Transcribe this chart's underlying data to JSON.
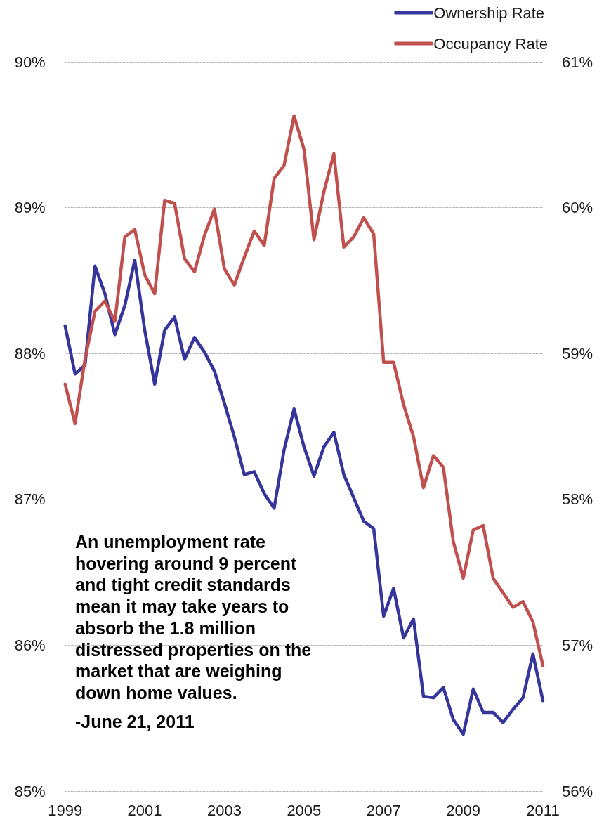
{
  "chart_data": {
    "type": "line",
    "x": [
      1999,
      1999.25,
      1999.5,
      1999.75,
      2000,
      2000.25,
      2000.5,
      2000.75,
      2001,
      2001.25,
      2001.5,
      2001.75,
      2002,
      2002.25,
      2002.5,
      2002.75,
      2003,
      2003.25,
      2003.5,
      2003.75,
      2004,
      2004.25,
      2004.5,
      2004.75,
      2005,
      2005.25,
      2005.5,
      2005.75,
      2006,
      2006.25,
      2006.5,
      2006.75,
      2007,
      2007.25,
      2007.5,
      2007.75,
      2008,
      2008.25,
      2008.5,
      2008.75,
      2009,
      2009.25,
      2009.5,
      2009.75,
      2010,
      2010.25,
      2010.5,
      2010.75,
      2011
    ],
    "series": [
      {
        "name": "Ownership Rate",
        "color": "#35359b",
        "axis": "y",
        "values": [
          88.19,
          87.86,
          87.92,
          88.6,
          88.41,
          88.13,
          88.33,
          88.64,
          88.16,
          87.79,
          88.16,
          88.25,
          87.96,
          88.11,
          88.01,
          87.88,
          87.66,
          87.43,
          87.17,
          87.19,
          87.04,
          86.94,
          87.34,
          87.62,
          87.36,
          87.16,
          87.36,
          87.46,
          87.17,
          87.01,
          86.85,
          86.8,
          86.2,
          86.39,
          86.05,
          86.18,
          85.65,
          85.64,
          85.71,
          85.49,
          85.39,
          85.7,
          85.54,
          85.54,
          85.47,
          85.56,
          85.64,
          85.94,
          85.62
        ]
      },
      {
        "name": "Occupancy Rate",
        "color": "#c0504d",
        "axis": "y2",
        "values": [
          58.79,
          58.52,
          58.96,
          59.29,
          59.36,
          59.22,
          59.8,
          59.85,
          59.54,
          59.41,
          60.05,
          60.03,
          59.65,
          59.56,
          59.81,
          59.99,
          59.58,
          59.47,
          59.66,
          59.84,
          59.74,
          60.2,
          60.29,
          60.63,
          60.4,
          59.78,
          60.11,
          60.37,
          59.73,
          59.8,
          59.93,
          59.82,
          58.94,
          58.94,
          58.65,
          58.43,
          58.08,
          58.3,
          58.22,
          57.71,
          57.46,
          57.79,
          57.82,
          57.46,
          57.36,
          57.26,
          57.3,
          57.16,
          56.86
        ]
      }
    ],
    "xlim": [
      1999,
      2011
    ],
    "xticks": [
      1999,
      2001,
      2003,
      2005,
      2007,
      2009,
      2011
    ],
    "ylim": [
      85,
      90
    ],
    "yticks": [
      {
        "value": 85,
        "label": "85%"
      },
      {
        "value": 86,
        "label": "86%"
      },
      {
        "value": 87,
        "label": "87%"
      },
      {
        "value": 88,
        "label": "88%"
      },
      {
        "value": 89,
        "label": "89%"
      },
      {
        "value": 90,
        "label": "90%"
      }
    ],
    "y2lim": [
      56,
      61
    ],
    "y2ticks": [
      {
        "value": 56,
        "label": "56%"
      },
      {
        "value": 57,
        "label": "57%"
      },
      {
        "value": 58,
        "label": "58%"
      },
      {
        "value": 59,
        "label": "59%"
      },
      {
        "value": 60,
        "label": "60%"
      },
      {
        "value": 61,
        "label": "61%"
      }
    ],
    "grid": "y",
    "legend": "top right",
    "annotations": [
      "An unemployment rate hovering around 9 percent and tight credit standards mean it may take years to absorb the 1.8 million distressed properties on the market that are weighing down home values.",
      "-June 21, 2011"
    ]
  }
}
